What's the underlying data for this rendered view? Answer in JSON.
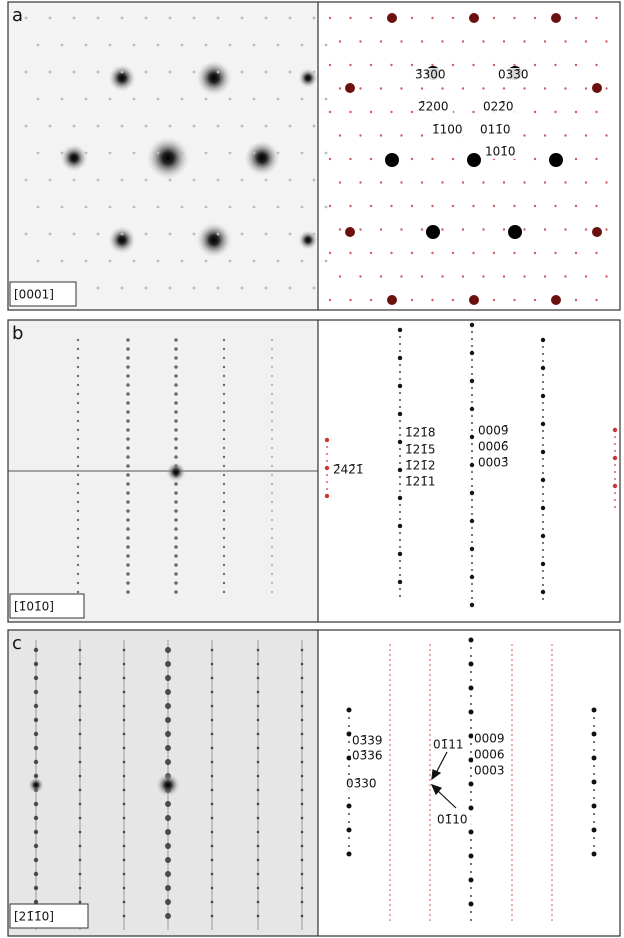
{
  "panels": [
    {
      "letter": "a",
      "zone_axis": "[0001]",
      "labels": [
        "3̄300",
        "033̄0",
        "2̄200",
        "022̄0",
        "1̄100",
        "011̄0",
        "101̄0"
      ]
    },
    {
      "letter": "b",
      "zone_axis": "[1̄01̄0]",
      "labels": [
        "1̄21̄8",
        "1̄21̄5",
        "1̄21̄2",
        "1̄21̄1",
        "0009̄",
        "0006̄",
        "0003̄",
        "2̄42̄1̄"
      ]
    },
    {
      "letter": "c",
      "zone_axis": "[21̄1̄0]",
      "labels": [
        "03̄39",
        "03̄36",
        "03̄30",
        "01̄11",
        "0009",
        "0006",
        "0003",
        "01̄10"
      ]
    }
  ]
}
